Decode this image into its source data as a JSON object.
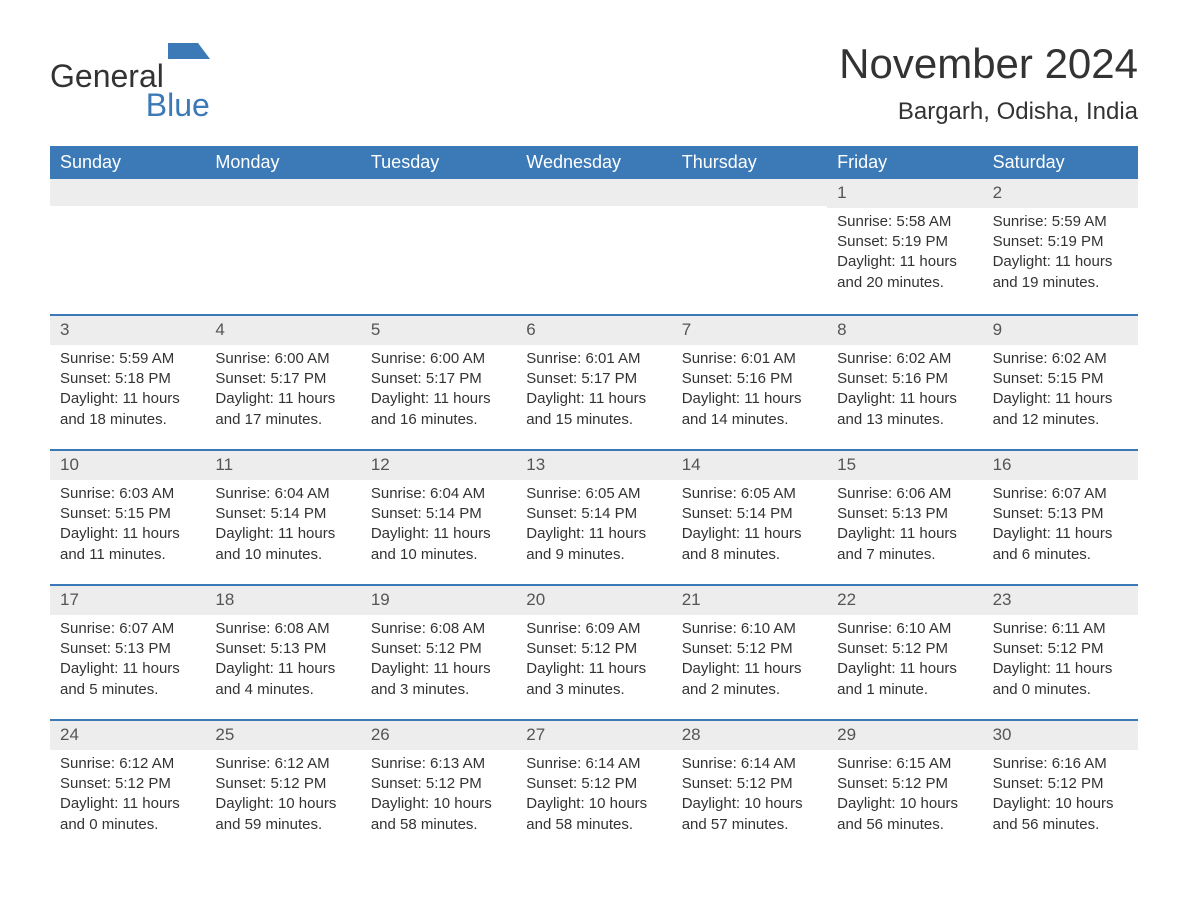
{
  "logo": {
    "text1": "General",
    "text2": "Blue"
  },
  "title": "November 2024",
  "location": "Bargarh, Odisha, India",
  "colors": {
    "header_bg": "#3b79b7",
    "header_text": "#ffffff",
    "daynum_bg": "#ededed",
    "border": "#3b79b7",
    "text": "#333333",
    "logo_blue": "#3b79b7"
  },
  "weekdays": [
    "Sunday",
    "Monday",
    "Tuesday",
    "Wednesday",
    "Thursday",
    "Friday",
    "Saturday"
  ],
  "weeks": [
    [
      null,
      null,
      null,
      null,
      null,
      {
        "n": "1",
        "sr": "Sunrise: 5:58 AM",
        "ss": "Sunset: 5:19 PM",
        "d1": "Daylight: 11 hours",
        "d2": "and 20 minutes."
      },
      {
        "n": "2",
        "sr": "Sunrise: 5:59 AM",
        "ss": "Sunset: 5:19 PM",
        "d1": "Daylight: 11 hours",
        "d2": "and 19 minutes."
      }
    ],
    [
      {
        "n": "3",
        "sr": "Sunrise: 5:59 AM",
        "ss": "Sunset: 5:18 PM",
        "d1": "Daylight: 11 hours",
        "d2": "and 18 minutes."
      },
      {
        "n": "4",
        "sr": "Sunrise: 6:00 AM",
        "ss": "Sunset: 5:17 PM",
        "d1": "Daylight: 11 hours",
        "d2": "and 17 minutes."
      },
      {
        "n": "5",
        "sr": "Sunrise: 6:00 AM",
        "ss": "Sunset: 5:17 PM",
        "d1": "Daylight: 11 hours",
        "d2": "and 16 minutes."
      },
      {
        "n": "6",
        "sr": "Sunrise: 6:01 AM",
        "ss": "Sunset: 5:17 PM",
        "d1": "Daylight: 11 hours",
        "d2": "and 15 minutes."
      },
      {
        "n": "7",
        "sr": "Sunrise: 6:01 AM",
        "ss": "Sunset: 5:16 PM",
        "d1": "Daylight: 11 hours",
        "d2": "and 14 minutes."
      },
      {
        "n": "8",
        "sr": "Sunrise: 6:02 AM",
        "ss": "Sunset: 5:16 PM",
        "d1": "Daylight: 11 hours",
        "d2": "and 13 minutes."
      },
      {
        "n": "9",
        "sr": "Sunrise: 6:02 AM",
        "ss": "Sunset: 5:15 PM",
        "d1": "Daylight: 11 hours",
        "d2": "and 12 minutes."
      }
    ],
    [
      {
        "n": "10",
        "sr": "Sunrise: 6:03 AM",
        "ss": "Sunset: 5:15 PM",
        "d1": "Daylight: 11 hours",
        "d2": "and 11 minutes."
      },
      {
        "n": "11",
        "sr": "Sunrise: 6:04 AM",
        "ss": "Sunset: 5:14 PM",
        "d1": "Daylight: 11 hours",
        "d2": "and 10 minutes."
      },
      {
        "n": "12",
        "sr": "Sunrise: 6:04 AM",
        "ss": "Sunset: 5:14 PM",
        "d1": "Daylight: 11 hours",
        "d2": "and 10 minutes."
      },
      {
        "n": "13",
        "sr": "Sunrise: 6:05 AM",
        "ss": "Sunset: 5:14 PM",
        "d1": "Daylight: 11 hours",
        "d2": "and 9 minutes."
      },
      {
        "n": "14",
        "sr": "Sunrise: 6:05 AM",
        "ss": "Sunset: 5:14 PM",
        "d1": "Daylight: 11 hours",
        "d2": "and 8 minutes."
      },
      {
        "n": "15",
        "sr": "Sunrise: 6:06 AM",
        "ss": "Sunset: 5:13 PM",
        "d1": "Daylight: 11 hours",
        "d2": "and 7 minutes."
      },
      {
        "n": "16",
        "sr": "Sunrise: 6:07 AM",
        "ss": "Sunset: 5:13 PM",
        "d1": "Daylight: 11 hours",
        "d2": "and 6 minutes."
      }
    ],
    [
      {
        "n": "17",
        "sr": "Sunrise: 6:07 AM",
        "ss": "Sunset: 5:13 PM",
        "d1": "Daylight: 11 hours",
        "d2": "and 5 minutes."
      },
      {
        "n": "18",
        "sr": "Sunrise: 6:08 AM",
        "ss": "Sunset: 5:13 PM",
        "d1": "Daylight: 11 hours",
        "d2": "and 4 minutes."
      },
      {
        "n": "19",
        "sr": "Sunrise: 6:08 AM",
        "ss": "Sunset: 5:12 PM",
        "d1": "Daylight: 11 hours",
        "d2": "and 3 minutes."
      },
      {
        "n": "20",
        "sr": "Sunrise: 6:09 AM",
        "ss": "Sunset: 5:12 PM",
        "d1": "Daylight: 11 hours",
        "d2": "and 3 minutes."
      },
      {
        "n": "21",
        "sr": "Sunrise: 6:10 AM",
        "ss": "Sunset: 5:12 PM",
        "d1": "Daylight: 11 hours",
        "d2": "and 2 minutes."
      },
      {
        "n": "22",
        "sr": "Sunrise: 6:10 AM",
        "ss": "Sunset: 5:12 PM",
        "d1": "Daylight: 11 hours",
        "d2": "and 1 minute."
      },
      {
        "n": "23",
        "sr": "Sunrise: 6:11 AM",
        "ss": "Sunset: 5:12 PM",
        "d1": "Daylight: 11 hours",
        "d2": "and 0 minutes."
      }
    ],
    [
      {
        "n": "24",
        "sr": "Sunrise: 6:12 AM",
        "ss": "Sunset: 5:12 PM",
        "d1": "Daylight: 11 hours",
        "d2": "and 0 minutes."
      },
      {
        "n": "25",
        "sr": "Sunrise: 6:12 AM",
        "ss": "Sunset: 5:12 PM",
        "d1": "Daylight: 10 hours",
        "d2": "and 59 minutes."
      },
      {
        "n": "26",
        "sr": "Sunrise: 6:13 AM",
        "ss": "Sunset: 5:12 PM",
        "d1": "Daylight: 10 hours",
        "d2": "and 58 minutes."
      },
      {
        "n": "27",
        "sr": "Sunrise: 6:14 AM",
        "ss": "Sunset: 5:12 PM",
        "d1": "Daylight: 10 hours",
        "d2": "and 58 minutes."
      },
      {
        "n": "28",
        "sr": "Sunrise: 6:14 AM",
        "ss": "Sunset: 5:12 PM",
        "d1": "Daylight: 10 hours",
        "d2": "and 57 minutes."
      },
      {
        "n": "29",
        "sr": "Sunrise: 6:15 AM",
        "ss": "Sunset: 5:12 PM",
        "d1": "Daylight: 10 hours",
        "d2": "and 56 minutes."
      },
      {
        "n": "30",
        "sr": "Sunrise: 6:16 AM",
        "ss": "Sunset: 5:12 PM",
        "d1": "Daylight: 10 hours",
        "d2": "and 56 minutes."
      }
    ]
  ]
}
